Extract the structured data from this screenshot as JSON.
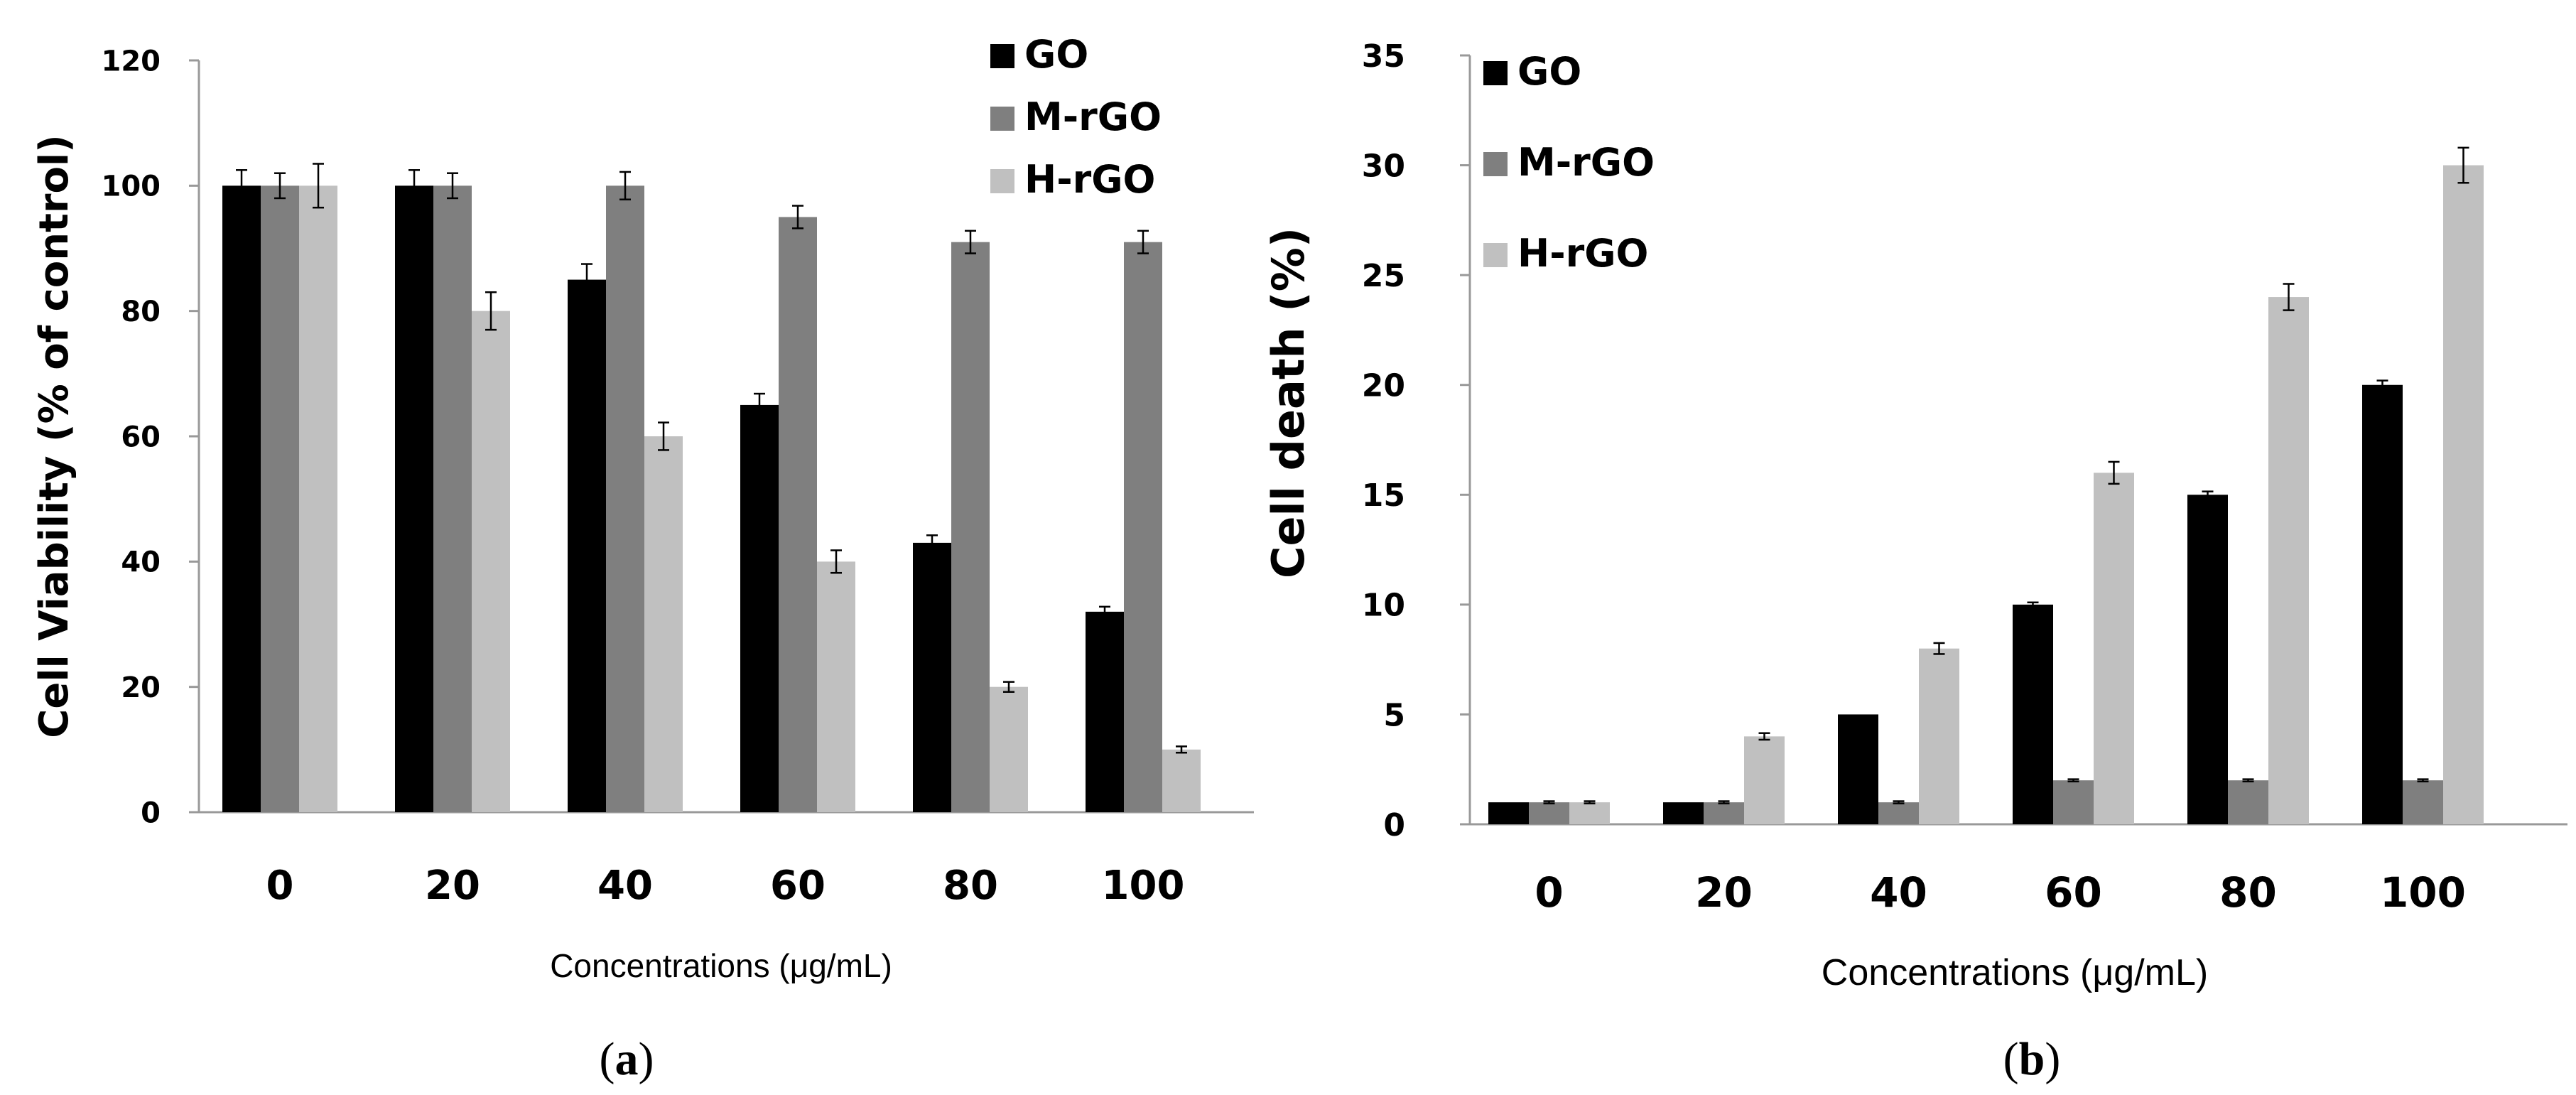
{
  "colors": {
    "GO": "#000000",
    "M-rGO": "#7f7f7f",
    "H-rGO": "#c0c0c0"
  },
  "chart_data": [
    {
      "id": "a",
      "type": "bar",
      "caption": "a",
      "xlabel": "Concentrations (μg/mL)",
      "ylabel": "Cell Viability (% of control)",
      "ylim": [
        0,
        120
      ],
      "yticks": [
        "0",
        "20",
        "40",
        "60",
        "80",
        "100",
        "120"
      ],
      "categories": [
        "0",
        "20",
        "40",
        "60",
        "80",
        "100"
      ],
      "legend_position": "top-right",
      "series": [
        {
          "name": "GO",
          "values": [
            100,
            100,
            85,
            65,
            43,
            32
          ],
          "errors": [
            2.5,
            2.5,
            2.5,
            1.8,
            1.2,
            0.8
          ]
        },
        {
          "name": "M-rGO",
          "values": [
            100,
            100,
            100,
            95,
            91,
            91
          ],
          "errors": [
            2,
            2,
            2.2,
            1.8,
            1.8,
            1.8
          ]
        },
        {
          "name": "H-rGO",
          "values": [
            100,
            80,
            60,
            40,
            20,
            10
          ],
          "errors": [
            3.5,
            3,
            2.2,
            1.8,
            0.8,
            0.5
          ]
        }
      ]
    },
    {
      "id": "b",
      "type": "bar",
      "caption": "b",
      "xlabel": "Concentrations (μg/mL)",
      "ylabel": "Cell death (%)",
      "ylim": [
        0,
        35
      ],
      "yticks": [
        "0",
        "5",
        "10",
        "15",
        "20",
        "25",
        "30",
        "35"
      ],
      "categories": [
        "0",
        "20",
        "40",
        "60",
        "80",
        "100"
      ],
      "legend_position": "top-left",
      "series": [
        {
          "name": "GO",
          "values": [
            1,
            1,
            5,
            10,
            15,
            20
          ],
          "errors": [
            0,
            0,
            0,
            0.1,
            0.15,
            0.2
          ]
        },
        {
          "name": "M-rGO",
          "values": [
            1,
            1,
            1,
            2,
            2,
            2
          ],
          "errors": [
            0.05,
            0.05,
            0.05,
            0.05,
            0.05,
            0.05
          ]
        },
        {
          "name": "H-rGO",
          "values": [
            1,
            4,
            8,
            16,
            24,
            30
          ],
          "errors": [
            0.05,
            0.15,
            0.25,
            0.5,
            0.6,
            0.8
          ]
        }
      ]
    }
  ]
}
